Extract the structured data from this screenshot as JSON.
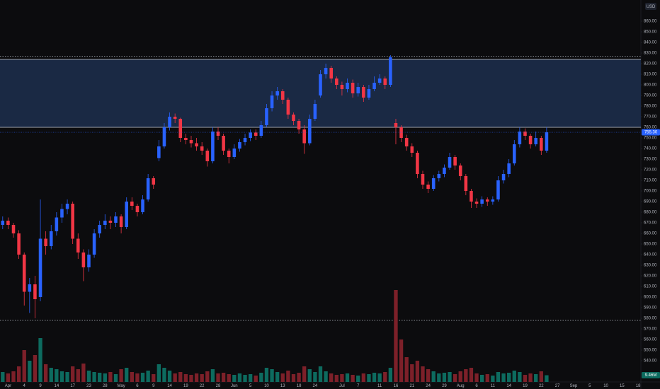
{
  "chart_data": {
    "type": "candlestick",
    "currency": "USD",
    "categories": [
      null,
      "Apr",
      null,
      null,
      "4",
      null,
      null,
      "9",
      null,
      null,
      "14",
      null,
      null,
      "17",
      null,
      null,
      "23",
      null,
      null,
      "28",
      null,
      null,
      "May",
      null,
      null,
      "6",
      null,
      null,
      "9",
      null,
      null,
      "14",
      null,
      null,
      "19",
      null,
      null,
      "22",
      null,
      null,
      "28",
      null,
      null,
      "Jun",
      null,
      null,
      "5",
      null,
      null,
      "10",
      null,
      null,
      "13",
      null,
      null,
      "18",
      null,
      null,
      "24",
      null,
      null,
      null,
      null,
      "Jul",
      null,
      null,
      "7",
      null,
      null,
      null,
      "11",
      null,
      null,
      "16",
      null,
      null,
      "21",
      null,
      null,
      "24",
      null,
      null,
      "29",
      null,
      null,
      "Aug",
      null,
      null,
      "6",
      null,
      null,
      "11",
      null,
      null,
      "14",
      null,
      null,
      "19",
      null,
      null,
      "22",
      null,
      null,
      "27",
      null,
      null,
      "Sep",
      null,
      null,
      "5",
      null,
      null,
      "10",
      null,
      null,
      "15",
      null,
      null,
      "18"
    ],
    "open": [
      668,
      672,
      668,
      660,
      640,
      605,
      612,
      600,
      655,
      648,
      662,
      675,
      683,
      688,
      655,
      642,
      628,
      640,
      660,
      668,
      672,
      670,
      676,
      666,
      690,
      686,
      680,
      692,
      712,
      731,
      742,
      760,
      770,
      768,
      750,
      748,
      745,
      742,
      738,
      728,
      756,
      752,
      738,
      732,
      740,
      746,
      750,
      755,
      752,
      762,
      778,
      790,
      794,
      786,
      772,
      766,
      758,
      745,
      768,
      790,
      810,
      816,
      806,
      800,
      796,
      802,
      792,
      798,
      788,
      796,
      802,
      806,
      800,
      764,
      760,
      750,
      742,
      736,
      716,
      706,
      702,
      712,
      716,
      722,
      732,
      724,
      714,
      700,
      690,
      688,
      692,
      690,
      692,
      710,
      716,
      726,
      744,
      756,
      752,
      744,
      750,
      738,
      null,
      null,
      null,
      null,
      null,
      null,
      null,
      null,
      null,
      null,
      null,
      null,
      null,
      null,
      null,
      null,
      null
    ],
    "high": [
      676,
      675,
      670,
      663,
      642,
      618,
      620,
      692,
      662,
      668,
      680,
      688,
      692,
      690,
      660,
      645,
      645,
      664,
      672,
      678,
      676,
      680,
      678,
      694,
      694,
      688,
      696,
      716,
      714,
      748,
      764,
      774,
      773,
      769,
      754,
      752,
      750,
      746,
      740,
      760,
      760,
      754,
      740,
      744,
      749,
      754,
      758,
      758,
      766,
      782,
      794,
      798,
      796,
      788,
      774,
      768,
      762,
      772,
      786,
      814,
      820,
      818,
      808,
      803,
      806,
      805,
      802,
      800,
      800,
      808,
      810,
      808,
      828,
      768,
      762,
      753,
      745,
      738,
      719,
      709,
      715,
      719,
      725,
      736,
      734,
      726,
      716,
      702,
      693,
      695,
      694,
      695,
      714,
      720,
      730,
      748,
      760,
      759,
      754,
      756,
      752,
      760,
      null,
      null,
      null,
      null,
      null,
      null,
      null,
      null,
      null,
      null,
      null,
      null,
      null,
      null,
      null,
      null,
      null
    ],
    "low": [
      664,
      664,
      656,
      636,
      592,
      585,
      580,
      596,
      640,
      645,
      658,
      670,
      678,
      650,
      636,
      615,
      624,
      637,
      656,
      664,
      664,
      666,
      660,
      664,
      682,
      676,
      678,
      690,
      702,
      728,
      740,
      757,
      764,
      746,
      744,
      741,
      738,
      734,
      723,
      726,
      748,
      734,
      726,
      730,
      737,
      743,
      747,
      748,
      750,
      760,
      775,
      786,
      782,
      768,
      762,
      754,
      735,
      743,
      766,
      788,
      806,
      802,
      796,
      790,
      793,
      788,
      789,
      784,
      786,
      794,
      800,
      796,
      798,
      744,
      746,
      738,
      732,
      712,
      702,
      698,
      700,
      709,
      713,
      720,
      720,
      710,
      696,
      684,
      684,
      685,
      686,
      687,
      690,
      707,
      713,
      724,
      741,
      748,
      740,
      742,
      734,
      736,
      null,
      null,
      null,
      null,
      null,
      null,
      null,
      null,
      null,
      null,
      null,
      null,
      null,
      null,
      null,
      null,
      null
    ],
    "close": [
      672,
      668,
      660,
      640,
      605,
      612,
      598,
      655,
      648,
      662,
      675,
      683,
      688,
      655,
      642,
      628,
      640,
      660,
      668,
      672,
      670,
      676,
      666,
      690,
      686,
      680,
      692,
      712,
      706,
      742,
      760,
      770,
      768,
      750,
      748,
      745,
      742,
      738,
      728,
      756,
      752,
      738,
      732,
      740,
      746,
      750,
      755,
      752,
      762,
      778,
      790,
      794,
      786,
      772,
      766,
      758,
      745,
      768,
      782,
      810,
      816,
      806,
      800,
      796,
      802,
      792,
      798,
      788,
      796,
      802,
      806,
      800,
      826,
      760,
      750,
      742,
      736,
      716,
      706,
      702,
      712,
      716,
      722,
      732,
      724,
      714,
      700,
      690,
      688,
      692,
      690,
      692,
      710,
      716,
      726,
      744,
      756,
      752,
      744,
      750,
      738,
      755.3,
      null,
      null,
      null,
      null,
      null,
      null,
      null,
      null,
      null,
      null,
      null,
      null,
      null,
      null,
      null,
      null,
      null
    ],
    "volume": [
      14,
      12,
      15,
      22,
      45,
      30,
      38,
      62,
      25,
      20,
      18,
      15,
      14,
      22,
      18,
      26,
      16,
      14,
      13,
      12,
      14,
      11,
      18,
      20,
      14,
      12,
      13,
      16,
      11,
      25,
      20,
      16,
      12,
      14,
      11,
      10,
      12,
      11,
      15,
      18,
      12,
      13,
      11,
      10,
      12,
      10,
      11,
      9,
      13,
      20,
      18,
      14,
      12,
      16,
      11,
      13,
      22,
      18,
      14,
      22,
      15,
      12,
      10,
      11,
      12,
      10,
      9,
      12,
      11,
      13,
      12,
      14,
      20,
      130,
      60,
      35,
      25,
      30,
      22,
      18,
      15,
      12,
      13,
      14,
      11,
      15,
      18,
      20,
      12,
      10,
      11,
      9,
      14,
      12,
      13,
      16,
      14,
      10,
      12,
      11,
      15,
      9.46,
      null,
      null,
      null,
      null,
      null,
      null,
      null,
      null,
      null,
      null,
      null,
      null,
      null,
      null,
      null,
      null,
      null
    ],
    "colors": {
      "up": "#2962ff",
      "down": "#f23645",
      "volume_up": "#0d6b5f",
      "volume_down": "#7d2029"
    },
    "ylim": [
      520,
      880
    ],
    "yticks": [
      {
        "value": 540,
        "label": "540.00"
      },
      {
        "value": 550,
        "label": "550.00"
      },
      {
        "value": 560,
        "label": "560.00"
      },
      {
        "value": 570,
        "label": "570.00"
      },
      {
        "value": 580,
        "label": "580.00"
      },
      {
        "value": 590,
        "label": "590.00"
      },
      {
        "value": 600,
        "label": "600.00"
      },
      {
        "value": 610,
        "label": "610.00"
      },
      {
        "value": 620,
        "label": "620.00"
      },
      {
        "value": 630,
        "label": "630.00"
      },
      {
        "value": 640,
        "label": "640.00"
      },
      {
        "value": 650,
        "label": "650.00"
      },
      {
        "value": 660,
        "label": "660.00"
      },
      {
        "value": 670,
        "label": "670.00"
      },
      {
        "value": 680,
        "label": "680.00"
      },
      {
        "value": 690,
        "label": "690.00"
      },
      {
        "value": 700,
        "label": "700.00"
      },
      {
        "value": 710,
        "label": "710.00"
      },
      {
        "value": 720,
        "label": "720.00"
      },
      {
        "value": 730,
        "label": "730.00"
      },
      {
        "value": 740,
        "label": "740.00"
      },
      {
        "value": 750,
        "label": "750.00"
      },
      {
        "value": 760,
        "label": "760.00"
      },
      {
        "value": 770,
        "label": "770.00"
      },
      {
        "value": 780,
        "label": "780.00"
      },
      {
        "value": 790,
        "label": "790.00"
      },
      {
        "value": 800,
        "label": "800.00"
      },
      {
        "value": 810,
        "label": "810.00"
      },
      {
        "value": 820,
        "label": "820.00"
      },
      {
        "value": 830,
        "label": "830.00"
      },
      {
        "value": 840,
        "label": "840.00"
      },
      {
        "value": 850,
        "label": "850.00"
      },
      {
        "value": 860,
        "label": "860.00"
      }
    ],
    "zone": {
      "from": 760,
      "to": 824,
      "color": "#1a2944"
    },
    "levels": [
      {
        "value": 827,
        "style": "dotted"
      },
      {
        "value": 578,
        "style": "dotted"
      }
    ],
    "last_price": {
      "value": 755.3,
      "label": "755.30"
    },
    "last_volume": {
      "value": 9.46,
      "label": "9.46M"
    }
  }
}
